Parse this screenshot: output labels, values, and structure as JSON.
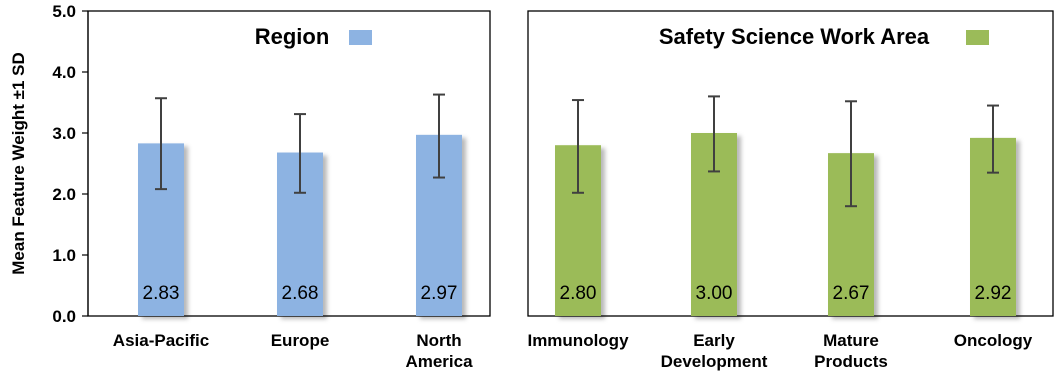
{
  "chart_data": {
    "type": "bar",
    "ylabel": "Mean Feature Weight ±1 SD",
    "ylim": [
      0,
      5
    ],
    "yticks": [
      "0.0",
      "1.0",
      "2.0",
      "3.0",
      "4.0",
      "5.0"
    ],
    "grid": false,
    "panels": [
      {
        "title": "Region",
        "color": "#8DB3E2",
        "categories": [
          [
            "Asia-Pacific"
          ],
          [
            "Europe"
          ],
          [
            "North",
            "America"
          ]
        ],
        "values": [
          2.83,
          2.68,
          2.97
        ],
        "labels": [
          "2.83",
          "2.68",
          "2.97"
        ],
        "sd_low": [
          2.08,
          2.02,
          2.27
        ],
        "sd_high": [
          3.57,
          3.31,
          3.63
        ]
      },
      {
        "title": "Safety Science Work Area",
        "color": "#9BBB59",
        "categories": [
          [
            "Immunology"
          ],
          [
            "Early",
            "Development"
          ],
          [
            "Mature",
            "Products"
          ],
          [
            "Oncology"
          ]
        ],
        "values": [
          2.8,
          3.0,
          2.67,
          2.92
        ],
        "labels": [
          "2.80",
          "3.00",
          "2.67",
          "2.92"
        ],
        "sd_low": [
          2.02,
          2.37,
          1.8,
          2.35
        ],
        "sd_high": [
          3.54,
          3.6,
          3.52,
          3.45
        ]
      }
    ]
  }
}
